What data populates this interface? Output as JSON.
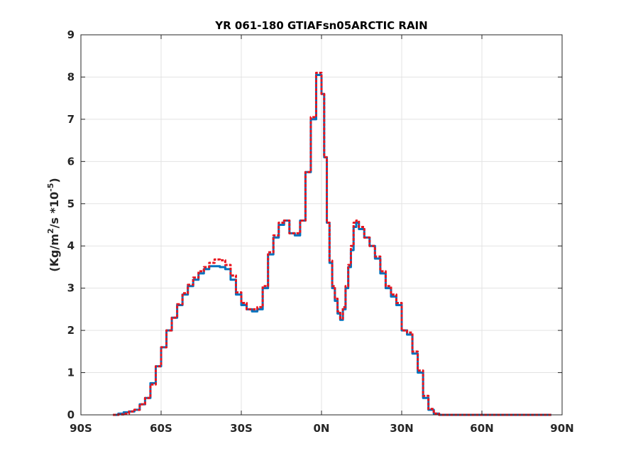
{
  "chart_data": {
    "type": "line",
    "title": "YR 061-180 GTIAFsn05ARCTIC RAIN",
    "xlabel": "",
    "ylabel": {
      "prefix": "(Kg/m",
      "sup1": "2",
      "mid": "/s   *10",
      "sup2": "-5",
      "suffix": ")"
    },
    "xlim": [
      -90,
      90
    ],
    "ylim": [
      0,
      9
    ],
    "x_ticks": [
      -90,
      -60,
      -30,
      0,
      30,
      60,
      90
    ],
    "x_tick_labels": [
      "90S",
      "60S",
      "30S",
      "0N",
      "30N",
      "60N",
      "90N"
    ],
    "y_ticks": [
      0,
      1,
      2,
      3,
      4,
      5,
      6,
      7,
      8,
      9
    ],
    "y_tick_labels": [
      "0",
      "1",
      "2",
      "3",
      "4",
      "5",
      "6",
      "7",
      "8",
      "9"
    ],
    "grid": true,
    "legend": false,
    "colors": {
      "series1": "#0072BD",
      "series2": "#E8141E",
      "axis": "#262626",
      "grid": "#e3e3e3"
    },
    "series": [
      {
        "x": [
          -78,
          -76,
          -74,
          -72,
          -70,
          -68,
          -66,
          -64,
          -62,
          -60,
          -58,
          -56,
          -54,
          -52,
          -50,
          -48,
          -46,
          -44,
          -42,
          -40,
          -38,
          -36,
          -34,
          -32,
          -30,
          -28,
          -26,
          -24,
          -22,
          -20,
          -18,
          -16,
          -14,
          -12,
          -10,
          -8,
          -6,
          -4,
          -2,
          0,
          1,
          2,
          3,
          4,
          5,
          6,
          7,
          8,
          9,
          10,
          11,
          12,
          13,
          14,
          16,
          18,
          20,
          22,
          24,
          26,
          28,
          30,
          32,
          34,
          36,
          38,
          40,
          42,
          44,
          46,
          48,
          50,
          52,
          54,
          56,
          58,
          60,
          62,
          64,
          66,
          68,
          70,
          72,
          74,
          76,
          78,
          80,
          82,
          84,
          86
        ],
        "y": [
          0.0,
          0.03,
          0.06,
          0.08,
          0.12,
          0.25,
          0.4,
          0.75,
          1.15,
          1.6,
          2.0,
          2.3,
          2.6,
          2.85,
          3.05,
          3.2,
          3.35,
          3.45,
          3.52,
          3.52,
          3.5,
          3.45,
          3.2,
          2.85,
          2.6,
          2.5,
          2.45,
          2.5,
          3.0,
          3.8,
          4.2,
          4.5,
          4.6,
          4.3,
          4.25,
          4.6,
          5.75,
          7.0,
          8.05,
          7.6,
          6.1,
          4.55,
          3.6,
          3.0,
          2.7,
          2.4,
          2.25,
          2.5,
          3.0,
          3.5,
          3.9,
          4.45,
          4.55,
          4.4,
          4.2,
          4.0,
          3.7,
          3.35,
          3.0,
          2.8,
          2.6,
          2.0,
          1.9,
          1.45,
          1.0,
          0.4,
          0.12,
          0.03,
          0.0,
          0.0,
          0,
          0,
          0,
          0,
          0,
          0,
          0,
          0,
          0,
          0,
          0,
          0,
          0,
          0,
          0,
          0,
          0,
          0,
          0,
          0
        ]
      },
      {
        "x": [
          -78,
          -76,
          -74,
          -72,
          -70,
          -68,
          -66,
          -64,
          -62,
          -60,
          -58,
          -56,
          -54,
          -52,
          -50,
          -48,
          -46,
          -44,
          -42,
          -40,
          -38,
          -36,
          -34,
          -32,
          -30,
          -28,
          -26,
          -24,
          -22,
          -20,
          -18,
          -16,
          -14,
          -12,
          -10,
          -8,
          -6,
          -4,
          -2,
          0,
          1,
          2,
          3,
          4,
          5,
          6,
          7,
          8,
          9,
          10,
          11,
          12,
          13,
          14,
          16,
          18,
          20,
          22,
          24,
          26,
          28,
          30,
          32,
          34,
          36,
          38,
          40,
          42,
          44,
          46,
          48,
          50,
          52,
          54,
          56,
          58,
          60,
          62,
          64,
          66,
          68,
          70,
          72,
          74,
          76,
          78,
          80,
          82,
          84,
          86
        ],
        "y": [
          0.0,
          0.01,
          0.03,
          0.08,
          0.12,
          0.25,
          0.4,
          0.72,
          1.15,
          1.6,
          2.0,
          2.3,
          2.62,
          2.88,
          3.08,
          3.25,
          3.4,
          3.5,
          3.6,
          3.68,
          3.66,
          3.55,
          3.3,
          2.9,
          2.65,
          2.5,
          2.5,
          2.55,
          3.05,
          3.85,
          4.25,
          4.55,
          4.6,
          4.3,
          4.3,
          4.6,
          5.75,
          7.05,
          8.1,
          7.6,
          6.1,
          4.55,
          3.65,
          3.05,
          2.75,
          2.45,
          2.28,
          2.55,
          3.05,
          3.55,
          4.0,
          4.55,
          4.6,
          4.45,
          4.2,
          4.0,
          3.75,
          3.4,
          3.05,
          2.85,
          2.65,
          2.0,
          1.95,
          1.5,
          1.05,
          0.45,
          0.14,
          0.03,
          0.0,
          0.0,
          0,
          0,
          0,
          0,
          0,
          0,
          0,
          0,
          0,
          0,
          0,
          0,
          0,
          0,
          0,
          0,
          0,
          0,
          0,
          0
        ]
      }
    ]
  }
}
